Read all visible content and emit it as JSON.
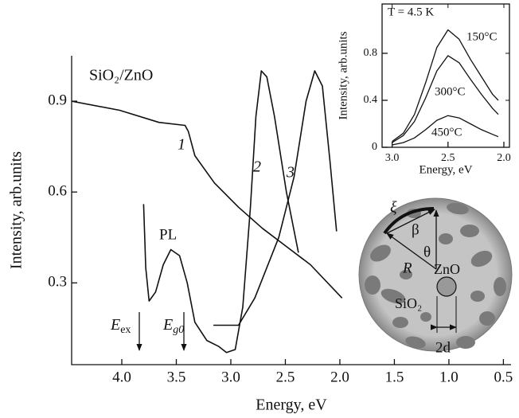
{
  "chart_data": [
    {
      "type": "line",
      "title": "SiO₂/ZnO",
      "x_label": "Energy, eV",
      "y_label": "Intensity, arb.units",
      "xlim": [
        4.46,
        0.43
      ],
      "ylim": [
        0.03,
        1.05
      ],
      "xticks": [
        {
          "value": 4,
          "label": "4.0"
        },
        3.5,
        {
          "value": 3,
          "label": "3.0"
        },
        2.5,
        {
          "value": 2,
          "label": "2.0"
        },
        1.5,
        {
          "value": 1,
          "label": "1.0"
        },
        0.5
      ],
      "yticks": [
        0.3,
        0.6,
        0.9
      ],
      "annotations": [
        "PL"
      ],
      "markers": [
        {
          "symbol": "E",
          "subscript": "ex"
        },
        {
          "symbol": "E",
          "subscript": "g0"
        }
      ],
      "series": [
        {
          "name": "1",
          "color": "#111111",
          "x": [
            4.46,
            4.02,
            3.66,
            3.42,
            3.39,
            3.33,
            3.15,
            2.93,
            2.71,
            2.49,
            2.27,
            1.98
          ],
          "values": [
            0.9,
            0.87,
            0.83,
            0.82,
            0.8,
            0.72,
            0.63,
            0.55,
            0.48,
            0.42,
            0.36,
            0.25
          ]
        },
        {
          "name": "2",
          "color": "#111111",
          "x": [
            3.8,
            3.78,
            3.75,
            3.69,
            3.62,
            3.55,
            3.47,
            3.4,
            3.33,
            3.22,
            3.11,
            3.04,
            2.96,
            2.89,
            2.82,
            2.77,
            2.72,
            2.67,
            2.6,
            2.49,
            2.38
          ],
          "values": [
            0.56,
            0.35,
            0.24,
            0.27,
            0.36,
            0.41,
            0.39,
            0.3,
            0.17,
            0.11,
            0.09,
            0.07,
            0.08,
            0.22,
            0.55,
            0.85,
            1.0,
            0.98,
            0.85,
            0.6,
            0.4
          ]
        },
        {
          "name": "3",
          "color": "#111111",
          "x": [
            3.16,
            2.93,
            2.78,
            2.56,
            2.42,
            2.31,
            2.23,
            2.16,
            2.09,
            2.03
          ],
          "values": [
            0.16,
            0.16,
            0.25,
            0.45,
            0.65,
            0.9,
            1.0,
            0.95,
            0.7,
            0.47
          ]
        }
      ]
    },
    {
      "type": "line",
      "title": "T = 4.5 K",
      "x_label": "Energy, eV",
      "y_label": "Intensity, arb.units",
      "xlim": [
        3.09,
        1.95
      ],
      "ylim": [
        0,
        1.22
      ],
      "xticks": [
        {
          "value": 3,
          "label": "3.0"
        },
        2.5,
        {
          "value": 2,
          "label": "2.0"
        }
      ],
      "yticks": [
        0,
        0.4,
        0.8
      ],
      "series": [
        {
          "name": "150°C",
          "color": "#111111",
          "x": [
            3.0,
            2.9,
            2.8,
            2.7,
            2.6,
            2.5,
            2.4,
            2.3,
            2.2,
            2.1,
            2.05
          ],
          "values": [
            0.05,
            0.12,
            0.28,
            0.55,
            0.85,
            1.0,
            0.92,
            0.75,
            0.6,
            0.45,
            0.4
          ]
        },
        {
          "name": "300°C",
          "color": "#111111",
          "x": [
            3.0,
            2.9,
            2.8,
            2.7,
            2.6,
            2.5,
            2.4,
            2.3,
            2.2,
            2.1,
            2.05
          ],
          "values": [
            0.04,
            0.1,
            0.22,
            0.42,
            0.65,
            0.78,
            0.72,
            0.58,
            0.45,
            0.33,
            0.28
          ]
        },
        {
          "name": "450°C",
          "color": "#111111",
          "x": [
            3.0,
            2.9,
            2.8,
            2.7,
            2.6,
            2.5,
            2.4,
            2.3,
            2.2,
            2.1,
            2.05
          ],
          "values": [
            0.02,
            0.04,
            0.08,
            0.15,
            0.23,
            0.27,
            0.25,
            0.2,
            0.15,
            0.11,
            0.09
          ]
        }
      ]
    }
  ],
  "diagram": {
    "labels": {
      "xi": "ξ",
      "beta": "β",
      "theta": "θ",
      "radius": "R",
      "particle": "ZnO",
      "matrix": "SiO₂",
      "size": "2d"
    }
  }
}
